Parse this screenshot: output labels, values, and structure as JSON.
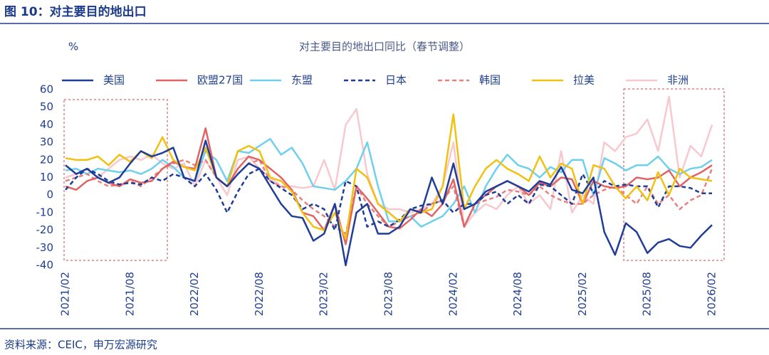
{
  "caption": "图 10：对主要目的地出口",
  "source": "资料来源：CEIC，申万宏源研究",
  "chart_data": {
    "type": "line",
    "title": "对主要目的地出口同比（春节调整）",
    "y_label": "%",
    "categories": [
      "2021/02",
      null,
      null,
      null,
      null,
      null,
      "2021/08",
      null,
      null,
      null,
      null,
      null,
      "2022/02",
      null,
      null,
      null,
      null,
      null,
      "2022/08",
      null,
      null,
      null,
      null,
      null,
      "2023/02",
      null,
      null,
      null,
      null,
      null,
      "2023/08",
      null,
      null,
      null,
      null,
      null,
      "2024/02",
      null,
      null,
      null,
      null,
      null,
      "2024/08",
      null,
      null,
      null,
      null,
      null,
      "2025/02",
      null,
      null,
      null,
      null,
      null,
      "2025/08",
      null,
      null,
      null,
      null,
      null,
      "2026/02"
    ],
    "ylim": [
      -40,
      60
    ],
    "yticks": [
      -40,
      -30,
      -20,
      -10,
      0,
      10,
      20,
      30,
      40,
      50,
      60
    ],
    "grid": false,
    "series": [
      {
        "name": "美国",
        "color": "#1f3d99",
        "dash": false,
        "values": [
          17,
          12,
          15,
          10,
          7,
          10,
          18,
          25,
          22,
          24,
          27,
          10,
          8,
          31,
          10,
          5,
          12,
          18,
          15,
          5,
          -5,
          -12,
          -13,
          -26,
          -22,
          -5,
          -40,
          -10,
          -5,
          -22,
          -22,
          -18,
          -8,
          -10,
          10,
          -5,
          18,
          -8,
          -5,
          2,
          5,
          8,
          5,
          2,
          8,
          6,
          16,
          3,
          1,
          10,
          -21,
          -34,
          -16,
          -21,
          -33,
          -27,
          -25,
          -29,
          -30,
          -23,
          -17
        ]
      },
      {
        "name": "欧盟27国",
        "color": "#e06464",
        "dash": false,
        "values": [
          5,
          3,
          8,
          10,
          7,
          5,
          9,
          7,
          8,
          15,
          19,
          16,
          15,
          38,
          10,
          5,
          15,
          22,
          20,
          15,
          10,
          3,
          -10,
          -12,
          -20,
          -5,
          -28,
          5,
          -2,
          -10,
          -18,
          -19,
          -14,
          -8,
          -12,
          -5,
          9,
          -18,
          -5,
          0,
          5,
          8,
          5,
          0,
          7,
          5,
          10,
          9,
          -5,
          8,
          5,
          4,
          5,
          10,
          9,
          10,
          14,
          5,
          10,
          13,
          17
        ]
      },
      {
        "name": "东盟",
        "color": "#6fd0ee",
        "dash": false,
        "values": [
          14,
          15,
          12,
          15,
          14,
          13,
          14,
          12,
          15,
          20,
          16,
          10,
          8,
          25,
          20,
          8,
          25,
          24,
          28,
          32,
          23,
          27,
          18,
          5,
          4,
          3,
          8,
          15,
          30,
          5,
          -15,
          -15,
          -12,
          -18,
          -15,
          -12,
          -5,
          5,
          -10,
          5,
          15,
          23,
          17,
          15,
          10,
          16,
          13,
          20,
          20,
          0,
          21,
          18,
          14,
          17,
          17,
          22,
          15,
          12,
          15,
          16,
          20
        ]
      },
      {
        "name": "日本",
        "color": "#1f3d99",
        "dash": true,
        "values": [
          3,
          10,
          15,
          12,
          8,
          6,
          7,
          6,
          10,
          8,
          12,
          10,
          5,
          12,
          3,
          -10,
          2,
          12,
          15,
          8,
          4,
          0,
          -8,
          -5,
          -8,
          -20,
          8,
          5,
          -18,
          -15,
          -18,
          -14,
          -8,
          -6,
          -5,
          -3,
          -10,
          -5,
          -5,
          0,
          2,
          -5,
          0,
          -5,
          6,
          5,
          0,
          -5,
          12,
          1,
          8,
          5,
          6,
          5,
          5,
          -7,
          5,
          5,
          4,
          1,
          1
        ]
      },
      {
        "name": "韩国",
        "color": "#e88080",
        "dash": true,
        "values": [
          8,
          10,
          12,
          8,
          5,
          6,
          8,
          5,
          10,
          15,
          18,
          20,
          17,
          20,
          10,
          5,
          12,
          18,
          20,
          8,
          5,
          3,
          -3,
          -8,
          -12,
          -18,
          -22,
          5,
          -5,
          -12,
          -18,
          -15,
          -12,
          -10,
          -5,
          -3,
          5,
          -18,
          -5,
          -3,
          -1,
          3,
          2,
          0,
          5,
          0,
          -3,
          -5,
          -5,
          0,
          3,
          5,
          0,
          -5,
          5,
          -5,
          0,
          -8,
          -3,
          0,
          15
        ]
      },
      {
        "name": "拉美",
        "color": "#f2c010",
        "dash": false,
        "values": [
          21,
          20,
          20,
          22,
          17,
          23,
          19,
          25,
          21,
          33,
          20,
          16,
          14,
          27,
          10,
          5,
          25,
          28,
          25,
          10,
          8,
          2,
          -10,
          -18,
          -20,
          -10,
          -25,
          15,
          10,
          -5,
          -10,
          -15,
          -8,
          -10,
          -8,
          5,
          46,
          -8,
          5,
          15,
          20,
          15,
          12,
          8,
          22,
          10,
          18,
          15,
          -5,
          17,
          15,
          5,
          -2,
          5,
          -3,
          13,
          0,
          15,
          10,
          9,
          8
        ]
      },
      {
        "name": "非洲",
        "color": "#f8c8cf",
        "dash": false,
        "values": [
          10,
          12,
          15,
          10,
          15,
          20,
          22,
          20,
          23,
          18,
          15,
          18,
          5,
          20,
          10,
          0,
          20,
          22,
          15,
          10,
          5,
          5,
          4,
          5,
          20,
          3,
          40,
          49,
          12,
          -5,
          -8,
          -8,
          -10,
          -8,
          -5,
          5,
          30,
          -18,
          -10,
          -5,
          -8,
          0,
          5,
          -5,
          0,
          -8,
          25,
          -10,
          0,
          -5,
          30,
          25,
          33,
          35,
          43,
          25,
          56,
          10,
          28,
          22,
          40
        ]
      }
    ]
  }
}
